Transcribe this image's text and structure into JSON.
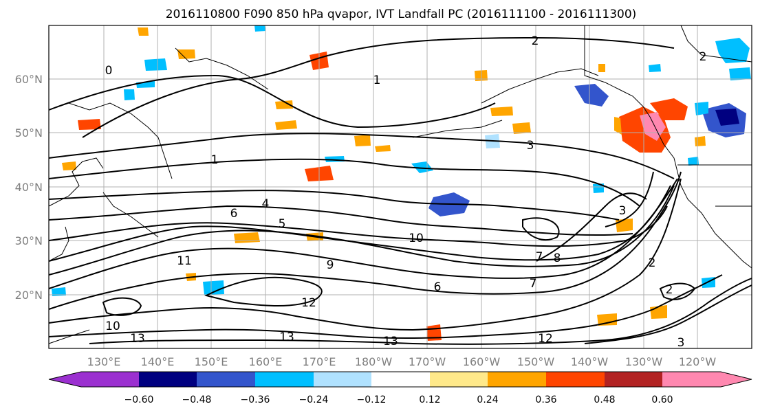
{
  "title": "2016110800 F090 850 hPa qvapor, IVT Landfall PC (2016111100 - 2016111300)",
  "lon_labels": [
    "130°E",
    "140°E",
    "150°E",
    "160°E",
    "170°E",
    "180°W",
    "170°W",
    "160°W",
    "150°W",
    "140°W",
    "130°W",
    "120°W"
  ],
  "lat_labels": [
    "20°N",
    "30°N",
    "40°N",
    "50°N",
    "60°N"
  ],
  "colorbar": {
    "levels": [
      "−0.60",
      "−0.48",
      "−0.36",
      "−0.24",
      "−0.12",
      "0.12",
      "0.24",
      "0.36",
      "0.48",
      "0.60"
    ],
    "colors": [
      "#9b30d0",
      "#000080",
      "#3355cc",
      "#00bfff",
      "#b0e2ff",
      "#ffffff",
      "#ffe98a",
      "#ffa500",
      "#ff4500",
      "#b22222",
      "#ff88b0"
    ]
  },
  "contour_labels": [
    {
      "text": "2"
    },
    {
      "text": "2"
    },
    {
      "text": "1"
    },
    {
      "text": "1"
    },
    {
      "text": "0"
    },
    {
      "text": "3"
    },
    {
      "text": "4"
    },
    {
      "text": "5"
    },
    {
      "text": "6"
    },
    {
      "text": "7"
    },
    {
      "text": "8"
    },
    {
      "text": "9"
    },
    {
      "text": "10"
    },
    {
      "text": "11"
    },
    {
      "text": "12"
    },
    {
      "text": "13"
    },
    {
      "text": "13"
    },
    {
      "text": "13"
    },
    {
      "text": "12"
    },
    {
      "text": "10"
    },
    {
      "text": "7"
    },
    {
      "text": "6"
    },
    {
      "text": "3"
    },
    {
      "text": "2"
    },
    {
      "text": "2"
    },
    {
      "text": "3"
    }
  ]
}
